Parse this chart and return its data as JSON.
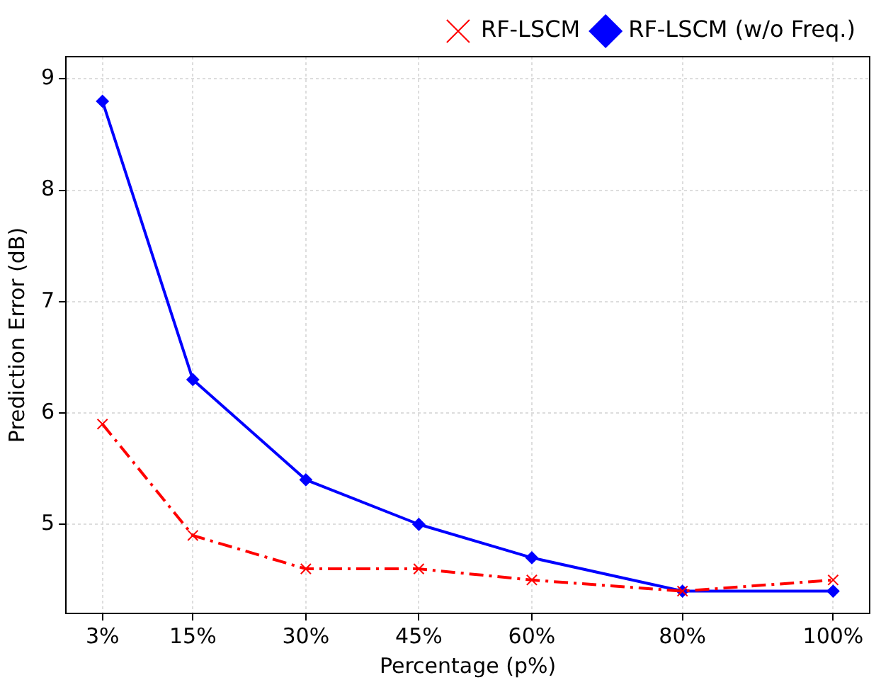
{
  "chart_data": {
    "type": "line",
    "xlabel": "Percentage (p%)",
    "ylabel": "Prediction Error (dB)",
    "x": [
      3,
      15,
      30,
      45,
      60,
      80,
      100
    ],
    "xlim": [
      -1.85,
      104.85
    ],
    "xticks": [
      {
        "value": 3,
        "label": "3%"
      },
      {
        "value": 15,
        "label": "15%"
      },
      {
        "value": 30,
        "label": "30%"
      },
      {
        "value": 45,
        "label": "45%"
      },
      {
        "value": 60,
        "label": "60%"
      },
      {
        "value": 80,
        "label": "80%"
      },
      {
        "value": 100,
        "label": "100%"
      }
    ],
    "ylim": [
      4.2,
      9.2
    ],
    "yticks": [
      5,
      6,
      7,
      8,
      9
    ],
    "grid": true,
    "legend": "top right",
    "series": [
      {
        "name": "RF-LSCM",
        "color": "#ff0000",
        "values": [
          5.9,
          4.9,
          4.6,
          4.6,
          4.5,
          4.4,
          4.5
        ],
        "marker": "cross",
        "line_style": "dashed"
      },
      {
        "name": "RF-LSCM (w/o Freq.)",
        "color": "#0000ff",
        "values": [
          8.8,
          6.3,
          5.4,
          5.0,
          4.7,
          4.4,
          4.4
        ],
        "marker": "diamond",
        "line_style": "solid"
      }
    ]
  }
}
